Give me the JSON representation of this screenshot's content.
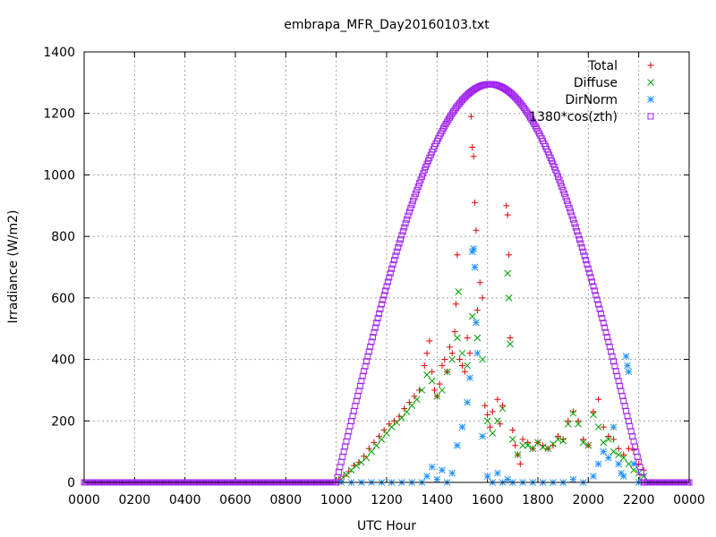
{
  "chart_data": {
    "type": "scatter",
    "title": "embrapa_MFR_Day20160103.txt",
    "xlabel": "UTC Hour",
    "ylabel": "Irradiance (W/m2)",
    "xlim": [
      0,
      24
    ],
    "ylim": [
      0,
      1400
    ],
    "x_ticks": [
      0,
      2,
      4,
      6,
      8,
      10,
      12,
      14,
      16,
      18,
      20,
      22,
      24
    ],
    "x_tick_labels": [
      "0000",
      "0200",
      "0400",
      "0600",
      "0800",
      "1000",
      "1200",
      "1400",
      "1600",
      "1800",
      "2000",
      "2200",
      "0000"
    ],
    "y_ticks": [
      0,
      200,
      400,
      600,
      800,
      1000,
      1200,
      1400
    ],
    "y_tick_labels": [
      "0",
      "200",
      "400",
      "600",
      "800",
      "1000",
      "1200",
      "1400"
    ],
    "grid": true,
    "legend_position": "top-right",
    "series": [
      {
        "name": "Total",
        "color": "#e00000",
        "marker": "plus",
        "points": [
          [
            10.1,
            8
          ],
          [
            10.3,
            20
          ],
          [
            10.5,
            35
          ],
          [
            10.7,
            55
          ],
          [
            10.9,
            65
          ],
          [
            11.1,
            85
          ],
          [
            11.3,
            110
          ],
          [
            11.5,
            130
          ],
          [
            11.7,
            150
          ],
          [
            11.9,
            170
          ],
          [
            12.1,
            190
          ],
          [
            12.3,
            200
          ],
          [
            12.5,
            215
          ],
          [
            12.7,
            240
          ],
          [
            12.9,
            260
          ],
          [
            13.1,
            280
          ],
          [
            13.3,
            300
          ],
          [
            13.5,
            380
          ],
          [
            13.6,
            420
          ],
          [
            13.7,
            460
          ],
          [
            13.8,
            360
          ],
          [
            13.9,
            300
          ],
          [
            14.0,
            280
          ],
          [
            14.1,
            320
          ],
          [
            14.2,
            380
          ],
          [
            14.3,
            400
          ],
          [
            14.4,
            360
          ],
          [
            14.5,
            440
          ],
          [
            14.6,
            420
          ],
          [
            14.7,
            490
          ],
          [
            14.75,
            580
          ],
          [
            14.8,
            740
          ],
          [
            14.9,
            400
          ],
          [
            15.0,
            380
          ],
          [
            15.1,
            360
          ],
          [
            15.2,
            470
          ],
          [
            15.3,
            420
          ],
          [
            15.35,
            1190
          ],
          [
            15.4,
            1090
          ],
          [
            15.45,
            1060
          ],
          [
            15.5,
            910
          ],
          [
            15.55,
            820
          ],
          [
            15.6,
            560
          ],
          [
            15.7,
            650
          ],
          [
            15.8,
            600
          ],
          [
            15.9,
            250
          ],
          [
            16.0,
            220
          ],
          [
            16.1,
            180
          ],
          [
            16.2,
            230
          ],
          [
            16.4,
            270
          ],
          [
            16.5,
            190
          ],
          [
            16.6,
            250
          ],
          [
            16.75,
            900
          ],
          [
            16.8,
            870
          ],
          [
            16.85,
            740
          ],
          [
            16.9,
            470
          ],
          [
            17.0,
            170
          ],
          [
            17.1,
            120
          ],
          [
            17.2,
            90
          ],
          [
            17.3,
            60
          ],
          [
            17.4,
            140
          ],
          [
            17.6,
            130
          ],
          [
            17.8,
            110
          ],
          [
            18.0,
            130
          ],
          [
            18.2,
            120
          ],
          [
            18.4,
            110
          ],
          [
            18.6,
            120
          ],
          [
            18.8,
            150
          ],
          [
            19.0,
            140
          ],
          [
            19.2,
            200
          ],
          [
            19.4,
            230
          ],
          [
            19.6,
            200
          ],
          [
            19.8,
            140
          ],
          [
            20.0,
            120
          ],
          [
            20.2,
            230
          ],
          [
            20.4,
            270
          ],
          [
            20.6,
            180
          ],
          [
            20.8,
            150
          ],
          [
            21.0,
            140
          ],
          [
            21.2,
            110
          ],
          [
            21.4,
            90
          ],
          [
            21.6,
            110
          ],
          [
            21.8,
            105
          ],
          [
            22.0,
            60
          ],
          [
            22.2,
            40
          ]
        ]
      },
      {
        "name": "Diffuse",
        "color": "#00a000",
        "marker": "cross",
        "points": [
          [
            10.2,
            10
          ],
          [
            10.4,
            25
          ],
          [
            10.6,
            40
          ],
          [
            10.8,
            55
          ],
          [
            11.0,
            65
          ],
          [
            11.2,
            80
          ],
          [
            11.4,
            100
          ],
          [
            11.6,
            120
          ],
          [
            11.8,
            140
          ],
          [
            12.0,
            160
          ],
          [
            12.2,
            180
          ],
          [
            12.4,
            195
          ],
          [
            12.6,
            210
          ],
          [
            12.8,
            230
          ],
          [
            13.0,
            250
          ],
          [
            13.2,
            270
          ],
          [
            13.4,
            300
          ],
          [
            13.6,
            350
          ],
          [
            13.8,
            330
          ],
          [
            14.0,
            280
          ],
          [
            14.2,
            300
          ],
          [
            14.4,
            360
          ],
          [
            14.6,
            400
          ],
          [
            14.8,
            470
          ],
          [
            14.85,
            620
          ],
          [
            15.0,
            420
          ],
          [
            15.2,
            380
          ],
          [
            15.4,
            540
          ],
          [
            15.6,
            470
          ],
          [
            15.8,
            400
          ],
          [
            16.0,
            200
          ],
          [
            16.2,
            160
          ],
          [
            16.4,
            200
          ],
          [
            16.6,
            240
          ],
          [
            16.8,
            680
          ],
          [
            16.85,
            600
          ],
          [
            16.9,
            450
          ],
          [
            17.0,
            140
          ],
          [
            17.2,
            90
          ],
          [
            17.4,
            120
          ],
          [
            17.6,
            120
          ],
          [
            17.8,
            110
          ],
          [
            18.0,
            130
          ],
          [
            18.2,
            115
          ],
          [
            18.4,
            110
          ],
          [
            18.6,
            125
          ],
          [
            18.8,
            140
          ],
          [
            19.0,
            135
          ],
          [
            19.2,
            190
          ],
          [
            19.4,
            225
          ],
          [
            19.6,
            190
          ],
          [
            19.8,
            130
          ],
          [
            20.0,
            120
          ],
          [
            20.2,
            220
          ],
          [
            20.4,
            180
          ],
          [
            20.6,
            130
          ],
          [
            20.8,
            140
          ],
          [
            21.0,
            100
          ],
          [
            21.2,
            90
          ],
          [
            21.4,
            80
          ],
          [
            21.6,
            60
          ],
          [
            21.8,
            40
          ],
          [
            22.0,
            30
          ],
          [
            22.2,
            20
          ]
        ]
      },
      {
        "name": "DirNorm",
        "color": "#1e90ff",
        "marker": "star",
        "points": [
          [
            10.2,
            0
          ],
          [
            10.6,
            0
          ],
          [
            11.0,
            0
          ],
          [
            11.4,
            0
          ],
          [
            11.8,
            0
          ],
          [
            12.2,
            0
          ],
          [
            12.6,
            0
          ],
          [
            13.0,
            0
          ],
          [
            13.4,
            0
          ],
          [
            13.6,
            20
          ],
          [
            13.8,
            50
          ],
          [
            14.0,
            10
          ],
          [
            14.2,
            40
          ],
          [
            14.4,
            0
          ],
          [
            14.6,
            30
          ],
          [
            14.8,
            120
          ],
          [
            15.0,
            180
          ],
          [
            15.2,
            260
          ],
          [
            15.3,
            340
          ],
          [
            15.4,
            750
          ],
          [
            15.45,
            760
          ],
          [
            15.5,
            700
          ],
          [
            15.55,
            520
          ],
          [
            15.6,
            420
          ],
          [
            15.8,
            150
          ],
          [
            16.0,
            20
          ],
          [
            16.2,
            0
          ],
          [
            16.4,
            30
          ],
          [
            16.6,
            0
          ],
          [
            16.8,
            10
          ],
          [
            17.0,
            0
          ],
          [
            17.4,
            0
          ],
          [
            17.8,
            0
          ],
          [
            18.2,
            0
          ],
          [
            18.6,
            0
          ],
          [
            19.0,
            0
          ],
          [
            19.4,
            10
          ],
          [
            19.8,
            0
          ],
          [
            20.2,
            20
          ],
          [
            20.4,
            60
          ],
          [
            20.6,
            100
          ],
          [
            20.8,
            80
          ],
          [
            21.0,
            180
          ],
          [
            21.2,
            60
          ],
          [
            21.3,
            30
          ],
          [
            21.4,
            20
          ],
          [
            21.5,
            410
          ],
          [
            21.55,
            380
          ],
          [
            21.6,
            360
          ],
          [
            21.8,
            60
          ],
          [
            22.0,
            0
          ],
          [
            22.4,
            0
          ]
        ]
      },
      {
        "name": "1380*cos(zth)",
        "color": "#a020f0",
        "marker": "square",
        "sunrise": 10.0,
        "sunset": 22.2,
        "peak": 1295,
        "peak_time": 16.1
      }
    ]
  }
}
